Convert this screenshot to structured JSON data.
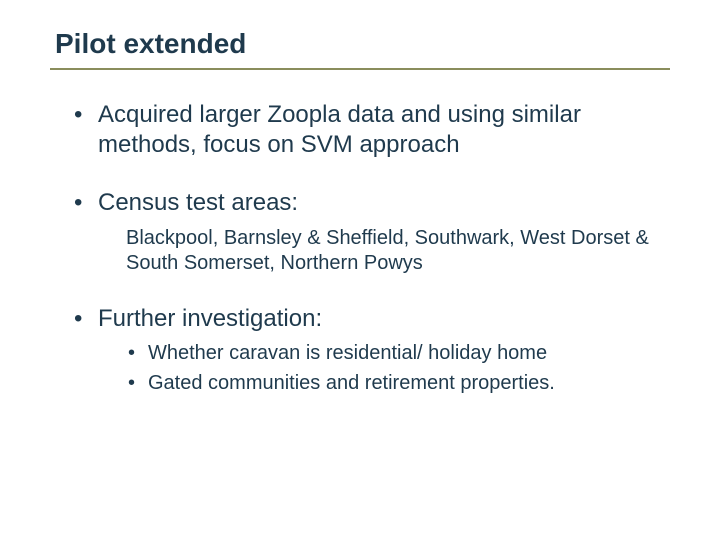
{
  "colors": {
    "text": "#1f3a4d",
    "rule": "#8a8d5c",
    "background": "#ffffff"
  },
  "typography": {
    "title_fontsize": 28,
    "body_fontsize": 24,
    "sub_fontsize": 20,
    "font_family": "Arial"
  },
  "title": "Pilot extended",
  "bullets": [
    {
      "text": "Acquired larger Zoopla data and using similar methods, focus on SVM approach"
    },
    {
      "text": "Census test areas:",
      "subtext": "Blackpool, Barnsley & Sheffield, Southwark, West Dorset & South Somerset, Northern Powys"
    },
    {
      "text": "Further investigation:",
      "subbullets": [
        "Whether caravan is residential/ holiday home",
        "Gated communities and retirement properties."
      ]
    }
  ]
}
